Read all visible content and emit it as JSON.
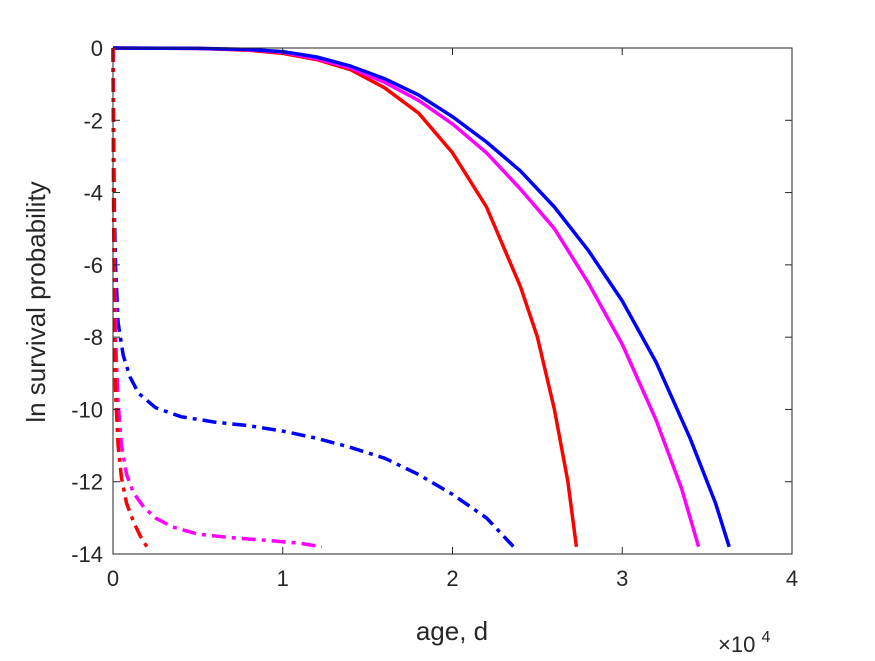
{
  "chart_data": {
    "type": "line",
    "xlabel": "age, d",
    "ylabel": "ln survival probability",
    "x_exponent_base": "×10",
    "x_exponent_power": "4",
    "xlim": [
      0,
      40000
    ],
    "ylim": [
      -14,
      0
    ],
    "x_ticks": [
      0,
      10000,
      20000,
      30000,
      40000
    ],
    "x_tick_labels": [
      "0",
      "1",
      "2",
      "3",
      "4"
    ],
    "y_ticks": [
      0,
      -2,
      -4,
      -6,
      -8,
      -10,
      -12,
      -14
    ],
    "y_tick_labels": [
      "0",
      "-2",
      "-4",
      "-6",
      "-8",
      "-10",
      "-12",
      "-14"
    ],
    "grid": false,
    "series": [
      {
        "color": "#ff0000",
        "style": "solid",
        "points": [
          [
            0,
            0
          ],
          [
            5000,
            -0.01
          ],
          [
            8000,
            -0.06
          ],
          [
            10000,
            -0.15
          ],
          [
            12000,
            -0.32
          ],
          [
            14000,
            -0.6
          ],
          [
            16000,
            -1.1
          ],
          [
            18000,
            -1.8
          ],
          [
            20000,
            -2.9
          ],
          [
            22000,
            -4.4
          ],
          [
            24000,
            -6.6
          ],
          [
            25000,
            -8.0
          ],
          [
            26000,
            -10.0
          ],
          [
            26800,
            -12.0
          ],
          [
            27300,
            -13.8
          ]
        ]
      },
      {
        "color": "#ff00ff",
        "style": "solid",
        "points": [
          [
            0,
            0
          ],
          [
            5000,
            -0.01
          ],
          [
            8000,
            -0.05
          ],
          [
            10000,
            -0.12
          ],
          [
            12000,
            -0.3
          ],
          [
            14000,
            -0.55
          ],
          [
            16000,
            -0.95
          ],
          [
            18000,
            -1.45
          ],
          [
            20000,
            -2.1
          ],
          [
            22000,
            -2.9
          ],
          [
            24000,
            -3.9
          ],
          [
            26000,
            -5.0
          ],
          [
            28000,
            -6.5
          ],
          [
            30000,
            -8.2
          ],
          [
            32000,
            -10.3
          ],
          [
            33500,
            -12.2
          ],
          [
            34500,
            -13.8
          ]
        ]
      },
      {
        "color": "#0000ff",
        "style": "solid",
        "points": [
          [
            0,
            0
          ],
          [
            5000,
            -0.01
          ],
          [
            8000,
            -0.04
          ],
          [
            10000,
            -0.1
          ],
          [
            12000,
            -0.25
          ],
          [
            14000,
            -0.5
          ],
          [
            16000,
            -0.85
          ],
          [
            18000,
            -1.3
          ],
          [
            20000,
            -1.9
          ],
          [
            22000,
            -2.6
          ],
          [
            24000,
            -3.4
          ],
          [
            26000,
            -4.4
          ],
          [
            28000,
            -5.6
          ],
          [
            30000,
            -7.0
          ],
          [
            32000,
            -8.7
          ],
          [
            34000,
            -10.8
          ],
          [
            35500,
            -12.6
          ],
          [
            36300,
            -13.8
          ]
        ]
      },
      {
        "color": "#0000ff",
        "style": "dashdot",
        "points": [
          [
            0,
            0
          ],
          [
            30,
            -2.0
          ],
          [
            80,
            -4.5
          ],
          [
            150,
            -6.0
          ],
          [
            300,
            -7.6
          ],
          [
            600,
            -8.5
          ],
          [
            1000,
            -9.1
          ],
          [
            1500,
            -9.55
          ],
          [
            2500,
            -9.95
          ],
          [
            4000,
            -10.2
          ],
          [
            6000,
            -10.35
          ],
          [
            8000,
            -10.45
          ],
          [
            10000,
            -10.6
          ],
          [
            12000,
            -10.8
          ],
          [
            14000,
            -11.05
          ],
          [
            16000,
            -11.35
          ],
          [
            18000,
            -11.8
          ],
          [
            20000,
            -12.35
          ],
          [
            22000,
            -13.0
          ],
          [
            23600,
            -13.8
          ]
        ]
      },
      {
        "color": "#ff00ff",
        "style": "dashdot",
        "points": [
          [
            0,
            0
          ],
          [
            30,
            -3.0
          ],
          [
            80,
            -6.0
          ],
          [
            150,
            -8.0
          ],
          [
            300,
            -9.8
          ],
          [
            500,
            -11.0
          ],
          [
            800,
            -11.8
          ],
          [
            1200,
            -12.3
          ],
          [
            1800,
            -12.7
          ],
          [
            2500,
            -13.0
          ],
          [
            3500,
            -13.25
          ],
          [
            5000,
            -13.45
          ],
          [
            7000,
            -13.55
          ],
          [
            9000,
            -13.62
          ],
          [
            11000,
            -13.7
          ],
          [
            12300,
            -13.8
          ]
        ]
      },
      {
        "color": "#ff0000",
        "style": "dashdot",
        "points": [
          [
            0,
            0
          ],
          [
            30,
            -4.0
          ],
          [
            80,
            -7.5
          ],
          [
            150,
            -9.5
          ],
          [
            300,
            -11.0
          ],
          [
            500,
            -11.9
          ],
          [
            800,
            -12.6
          ],
          [
            1200,
            -13.1
          ],
          [
            1600,
            -13.5
          ],
          [
            2000,
            -13.8
          ]
        ]
      }
    ]
  }
}
